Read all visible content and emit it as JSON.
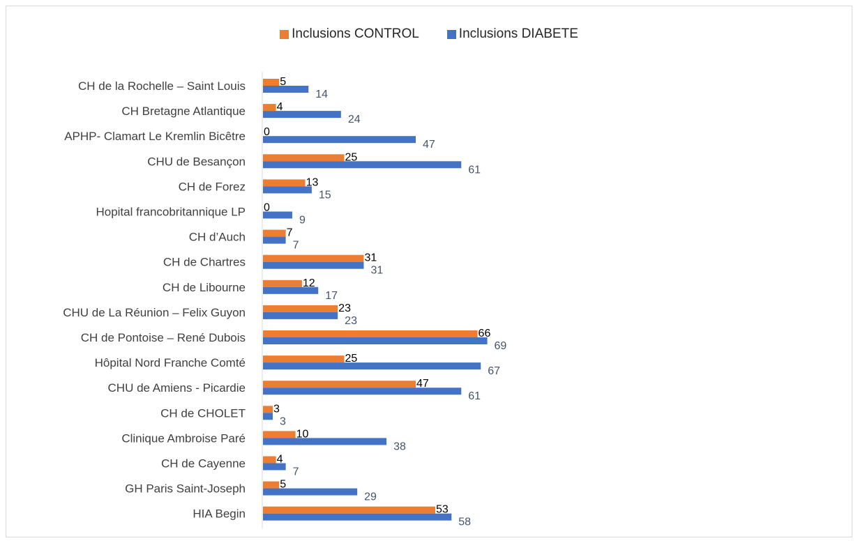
{
  "chart_data": {
    "type": "bar",
    "orientation": "horizontal",
    "title": "",
    "xlabel": "",
    "ylabel": "",
    "legend_position": "top",
    "grid": false,
    "xlim": [
      0,
      75
    ],
    "categories": [
      "CH de la Rochelle – Saint Louis",
      "CH Bretagne Atlantique",
      "APHP- Clamart Le Kremlin Bicêtre",
      "CHU de Besançon",
      "CH de Forez",
      "Hopital francobritannique LP",
      "CH d’Auch",
      "CH de Chartres",
      "CH de Libourne",
      "CHU de La Réunion – Felix Guyon",
      "CH de Pontoise – René Dubois",
      "Hôpital Nord Franche Comté",
      "CHU de Amiens - Picardie",
      "CH de CHOLET",
      "Clinique Ambroise Paré",
      "CH de Cayenne",
      "GH Paris Saint-Joseph",
      "HIA Begin"
    ],
    "series": [
      {
        "name": "Inclusions CONTROL",
        "color": "#ed7d31",
        "values": [
          5,
          4,
          0,
          25,
          13,
          0,
          7,
          31,
          12,
          23,
          66,
          25,
          47,
          3,
          10,
          4,
          5,
          53
        ]
      },
      {
        "name": "Inclusions DIABETE",
        "color": "#4472c4",
        "values": [
          14,
          24,
          47,
          61,
          15,
          9,
          7,
          31,
          17,
          23,
          69,
          67,
          61,
          3,
          38,
          7,
          29,
          58
        ]
      }
    ]
  }
}
